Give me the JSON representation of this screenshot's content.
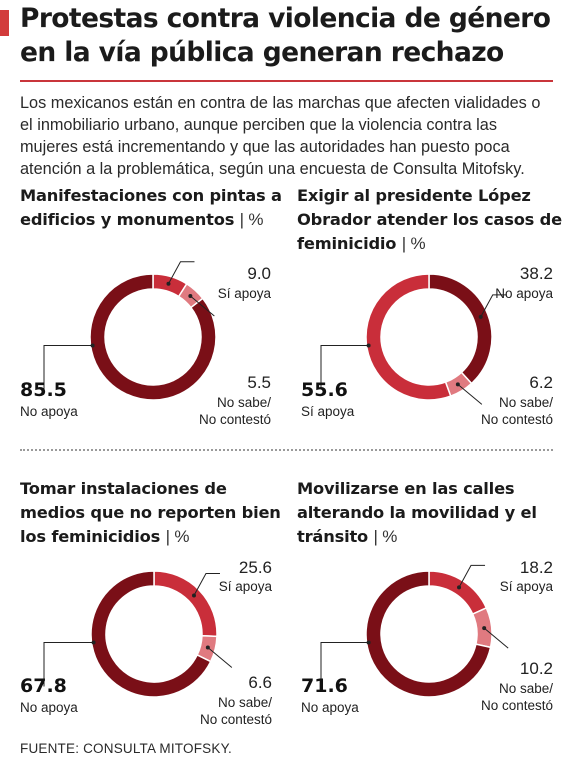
{
  "header": {
    "title": "Protestas contra violencia de género en la vía pública generan rechazo",
    "intro": "Los mexicanos están en contra de las marchas que afecten vialidades o el inmobiliario urbano, aunque perciben que la violencia contra las mujeres está incrementando y que las autoridades han puesto poca atención a la problemática, según una encuesta de Consulta Mitofsky."
  },
  "colors": {
    "no_apoya": "#7a0f17",
    "si_apoya": "#c92e3a",
    "no_sabe": "#e07a80",
    "accent": "#d23b3b"
  },
  "chart_data": [
    {
      "type": "pie",
      "title": "Manifestaciones con pintas a edificios y monumentos",
      "unit": "%",
      "slices": [
        {
          "label": "Sí apoya",
          "value": 9.0,
          "display": "9.0"
        },
        {
          "label": "No sabe/ No contestó",
          "label_lines": [
            "No sabe/",
            "No contestó"
          ],
          "value": 5.5,
          "display": "5.5"
        },
        {
          "label": "No apoya",
          "value": 85.5,
          "display": "85.5"
        }
      ]
    },
    {
      "type": "pie",
      "title": "Exigir al presidente López Obrador atender los casos de feminicidio",
      "unit": "%",
      "slices": [
        {
          "label": "No apoya",
          "value": 38.2,
          "display": "38.2"
        },
        {
          "label": "No sabe/ No contestó",
          "label_lines": [
            "No sabe/",
            "No contestó"
          ],
          "value": 6.2,
          "display": "6.2"
        },
        {
          "label": "Sí apoya",
          "value": 55.6,
          "display": "55.6"
        }
      ]
    },
    {
      "type": "pie",
      "title": "Tomar instalaciones de medios que no reporten bien los feminicidios",
      "unit": "%",
      "slices": [
        {
          "label": "Sí apoya",
          "value": 25.6,
          "display": "25.6"
        },
        {
          "label": "No sabe/ No contestó",
          "label_lines": [
            "No sabe/",
            "No contestó"
          ],
          "value": 6.6,
          "display": "6.6"
        },
        {
          "label": "No apoya",
          "value": 67.8,
          "display": "67.8"
        }
      ]
    },
    {
      "type": "pie",
      "title": "Movilizarse en las calles alterando la movilidad y el tránsito",
      "unit": "%",
      "slices": [
        {
          "label": "Sí apoya",
          "value": 18.2,
          "display": "18.2"
        },
        {
          "label": "No sabe/ No contestó",
          "label_lines": [
            "No sabe/",
            "No contestó"
          ],
          "value": 10.2,
          "display": "10.2"
        },
        {
          "label": "No apoya",
          "value": 71.6,
          "display": "71.6"
        }
      ]
    }
  ],
  "footer": {
    "source": "FUENTE: CONSULTA MITOFSKY."
  }
}
